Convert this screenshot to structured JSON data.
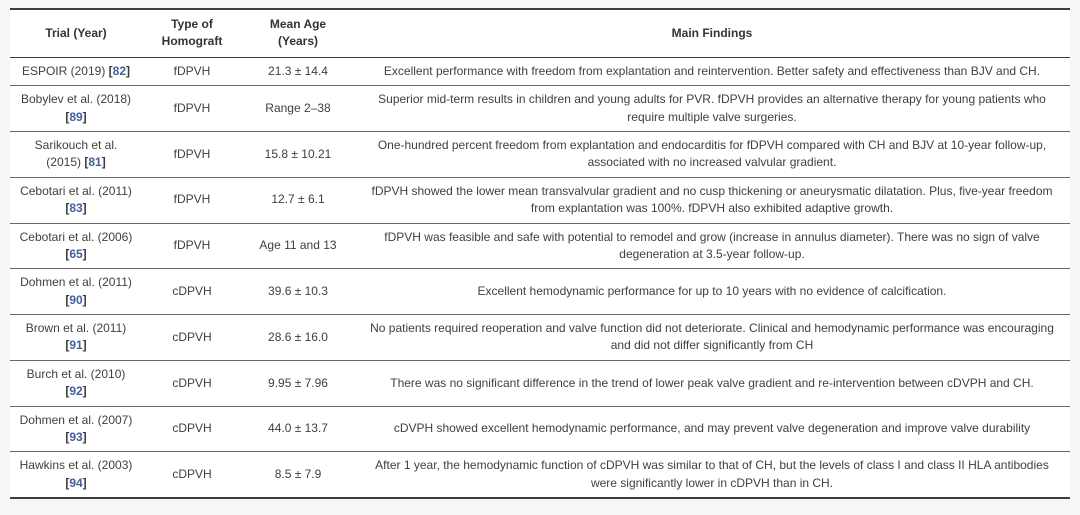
{
  "table": {
    "columns": [
      "Trial (Year)",
      "Type of Homograft",
      "Mean Age (Years)",
      "Main Findings"
    ],
    "rows": [
      {
        "trial": "ESPOIR (2019)",
        "ref": "82",
        "homograft": "fDPVH",
        "mean_age": "21.3 ± 14.4",
        "findings": "Excellent performance with freedom from explantation and reintervention. Better safety and effectiveness than BJV and CH."
      },
      {
        "trial": "Bobylev et al. (2018)",
        "ref": "89",
        "homograft": "fDPVH",
        "mean_age": "Range 2–38",
        "findings": "Superior mid-term results in children and young adults for PVR. fDPVH provides an alternative therapy for young patients who require multiple valve surgeries."
      },
      {
        "trial": "Sarikouch et al. (2015)",
        "ref": "81",
        "homograft": "fDPVH",
        "mean_age": "15.8 ± 10.21",
        "findings": "One-hundred percent freedom from explantation and endocarditis for fDPVH compared with CH and BJV at 10-year follow-up, associated with no increased valvular gradient."
      },
      {
        "trial": "Cebotari et al. (2011)",
        "ref": "83",
        "homograft": "fDPVH",
        "mean_age": "12.7 ± 6.1",
        "findings": "fDPVH showed the lower mean transvalvular gradient and no cusp thickening or aneurysmatic dilatation. Plus, five-year freedom from explantation was 100%. fDPVH also exhibited adaptive growth."
      },
      {
        "trial": "Cebotari et al. (2006)",
        "ref": "65",
        "homograft": "fDPVH",
        "mean_age": "Age 11 and 13",
        "findings": "fDPVH was feasible and safe with potential to remodel and grow (increase in annulus diameter). There was no sign of valve degeneration at 3.5-year follow-up."
      },
      {
        "trial": "Dohmen et al. (2011)",
        "ref": "90",
        "homograft": "cDPVH",
        "mean_age": "39.6 ± 10.3",
        "findings": "Excellent hemodynamic performance for up to 10 years with no evidence of calcification."
      },
      {
        "trial": "Brown et al. (2011)",
        "ref": "91",
        "homograft": "cDPVH",
        "mean_age": "28.6 ± 16.0",
        "findings": "No patients required reoperation and valve function did not deteriorate. Clinical and hemodynamic performance was encouraging and did not differ significantly from CH"
      },
      {
        "trial": "Burch et al. (2010)",
        "ref": "92",
        "homograft": "cDPVH",
        "mean_age": "9.95 ± 7.96",
        "findings": "There was no significant difference in the trend of lower peak valve gradient and re-intervention between cDVPH and CH."
      },
      {
        "trial": "Dohmen et al. (2007)",
        "ref": "93",
        "homograft": "cDPVH",
        "mean_age": "44.0 ± 13.7",
        "findings": "cDVPH showed excellent hemodynamic performance, and may prevent valve degeneration and improve valve durability"
      },
      {
        "trial": "Hawkins et al. (2003)",
        "ref": "94",
        "homograft": "cDPVH",
        "mean_age": "8.5 ± 7.9",
        "findings": "After 1 year, the hemodynamic function of cDPVH was similar to that of CH, but the levels of class I and class II HLA antibodies were significantly lower in cDPVH than in CH."
      }
    ]
  },
  "colors": {
    "citation_link": "#43609c",
    "border_dark": "#3d3d3d",
    "border_row": "#6a6a6a",
    "text": "#3f3f3f",
    "page_background": "#f6f6f7",
    "table_background": "#ffffff"
  }
}
